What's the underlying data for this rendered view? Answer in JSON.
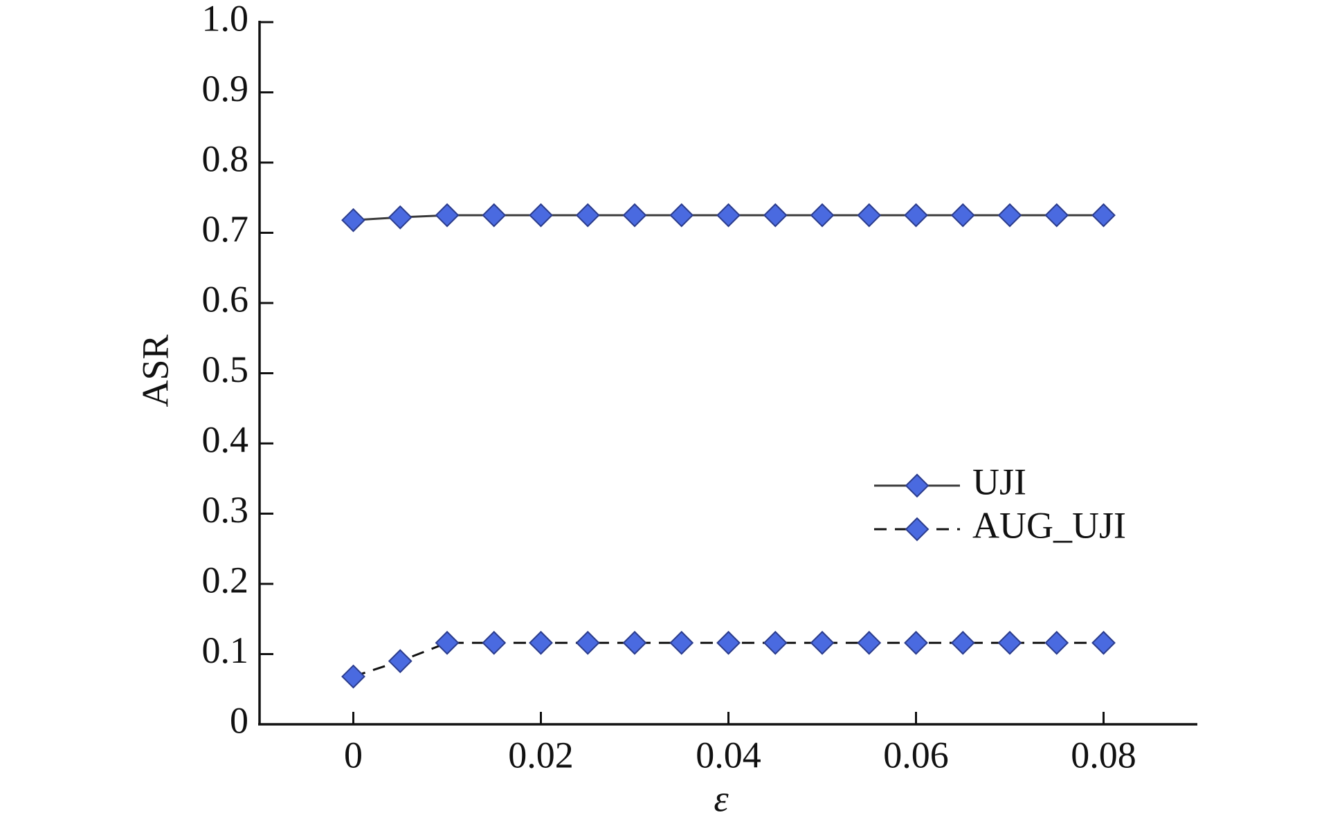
{
  "chart_data": {
    "type": "line",
    "x_label": "ε",
    "y_label": "ASR",
    "x": [
      0,
      0.005,
      0.01,
      0.015,
      0.02,
      0.025,
      0.03,
      0.035,
      0.04,
      0.045,
      0.05,
      0.055,
      0.06,
      0.065,
      0.07,
      0.075,
      0.08
    ],
    "series": [
      {
        "name": "UJI",
        "color": "#4a6ae0",
        "line_style": "solid",
        "values": [
          0.718,
          0.722,
          0.725,
          0.725,
          0.725,
          0.725,
          0.725,
          0.725,
          0.725,
          0.725,
          0.725,
          0.725,
          0.725,
          0.725,
          0.725,
          0.725,
          0.725
        ]
      },
      {
        "name": "AUG_UJI",
        "color": "#4a6ae0",
        "line_style": "dashed",
        "values": [
          0.068,
          0.09,
          0.116,
          0.116,
          0.116,
          0.116,
          0.116,
          0.116,
          0.116,
          0.116,
          0.116,
          0.116,
          0.116,
          0.116,
          0.116,
          0.116,
          0.116
        ]
      }
    ],
    "xlim": [
      -0.01,
      0.09
    ],
    "ylim": [
      0,
      1.0
    ],
    "xticks": [
      0,
      0.02,
      0.04,
      0.06,
      0.08
    ],
    "yticks": [
      0,
      0.1,
      0.2,
      0.3,
      0.4,
      0.5,
      0.6,
      0.7,
      0.8,
      0.9,
      {
        "value": 1.0,
        "label": "1.0"
      }
    ],
    "grid": false,
    "legend": "right"
  }
}
